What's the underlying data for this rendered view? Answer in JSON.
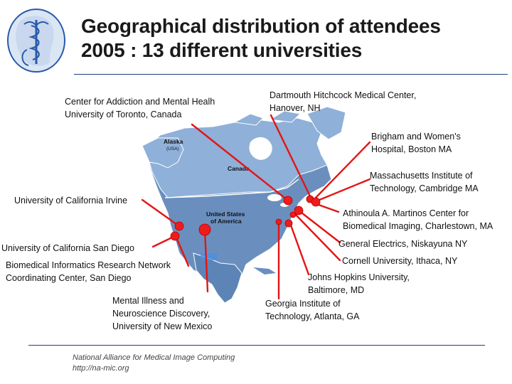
{
  "slide": {
    "title_line1": "Geographical distribution of attendees",
    "title_line2": "2005 : 13 different universities"
  },
  "map_labels": {
    "alaska": "Alaska",
    "alaska_sub": "(USA)",
    "canada": "Canada",
    "usa_line1": "United States",
    "usa_line2": "of America"
  },
  "sites": [
    {
      "id": "toronto",
      "lines": [
        "Center for Addiction and Mental Healh",
        "University of Toronto, Canada"
      ]
    },
    {
      "id": "dartmouth",
      "lines": [
        "Dartmouth Hitchcock Medical Center,",
        "Hanover, NH"
      ]
    },
    {
      "id": "brigham",
      "lines": [
        "Brigham and Women's",
        "Hospital, Boston MA"
      ]
    },
    {
      "id": "mit",
      "lines": [
        "Massachusetts Institute of",
        "Technology, Cambridge MA"
      ]
    },
    {
      "id": "irvine",
      "lines": [
        "University of California Irvine"
      ]
    },
    {
      "id": "martinos",
      "lines": [
        "Athinoula A. Martinos Center for",
        "Biomedical Imaging, Charlestown, MA"
      ]
    },
    {
      "id": "ucsd",
      "lines": [
        "University of California San Diego"
      ]
    },
    {
      "id": "ge",
      "lines": [
        "General Electrics, Niskayuna NY"
      ]
    },
    {
      "id": "birn",
      "lines": [
        "Biomedical Informatics Research Network",
        "Coordinating Center, San Diego"
      ]
    },
    {
      "id": "cornell",
      "lines": [
        "Cornell University, Ithaca, NY"
      ]
    },
    {
      "id": "jhu",
      "lines": [
        "Johns Hopkins University,",
        "Baltimore, MD"
      ]
    },
    {
      "id": "unm",
      "lines": [
        "Mental Illness and",
        "Neuroscience Discovery,",
        "University of New Mexico"
      ]
    },
    {
      "id": "gatech",
      "lines": [
        "Georgia Institute of",
        "Technology, Atlanta, GA"
      ]
    }
  ],
  "footer": {
    "line1": "National Alliance for Medical Image Computing",
    "line2": "http://na-mic.org"
  },
  "colors": {
    "land": "#6a8fbf",
    "land_light": "#8fb0d8",
    "border": "#ffffff",
    "marker": "#ee1c1c",
    "line": "#e31515",
    "title_rule": "#1f3f7a",
    "logo": "#2a5aa8"
  },
  "icons": {
    "logo": "na-mic-caduceus-logo"
  }
}
